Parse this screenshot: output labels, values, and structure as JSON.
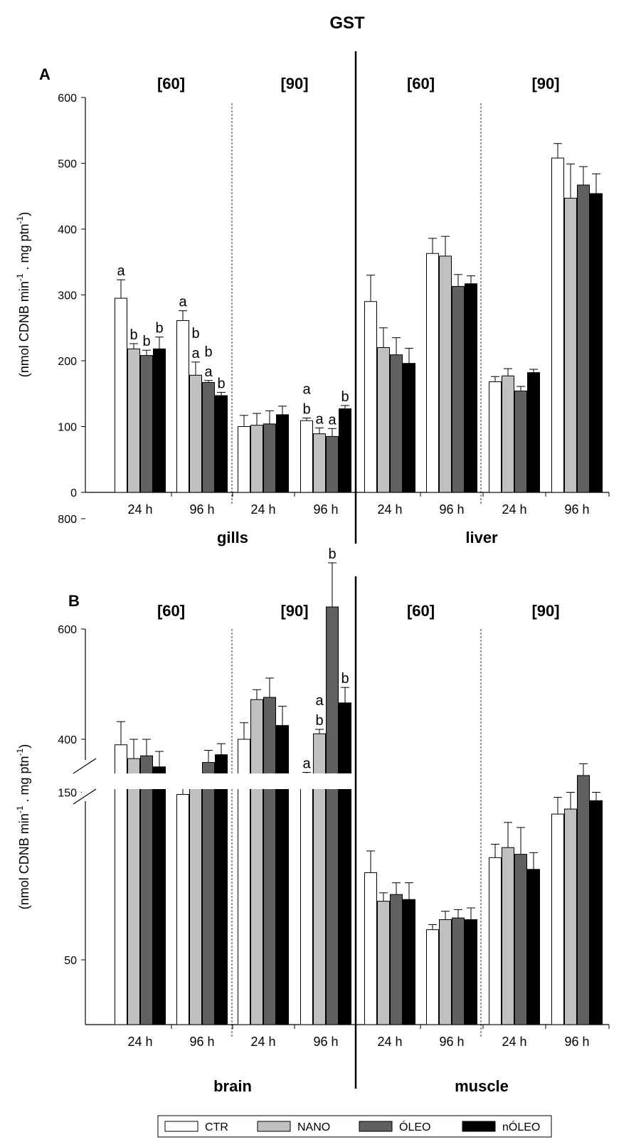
{
  "title": "GST",
  "legend": [
    {
      "label": "CTR",
      "color": "#ffffff"
    },
    {
      "label": "NANO",
      "color": "#c0c0c0"
    },
    {
      "label": "ÓLEO",
      "color": "#606060"
    },
    {
      "label": "nÓLEO",
      "color": "#000000"
    }
  ],
  "chart_data": [
    {
      "panel": "A",
      "type": "bar",
      "ylabel": "(nmol CDNB min-1 . mg ptn-1)",
      "ylim": [
        0,
        600
      ],
      "yticks": [
        0,
        100,
        200,
        300,
        400,
        500,
        600
      ],
      "series_names": [
        "CTR",
        "NANO",
        "ÓLEO",
        "nÓLEO"
      ],
      "tissues": [
        {
          "name": "gills",
          "groups": [
            {
              "conc": "[60]",
              "time": "24 h",
              "values": [
                295,
                218,
                208,
                218
              ],
              "errors": [
                28,
                8,
                8,
                18
              ],
              "letters": [
                "a",
                "b",
                "b",
                "b"
              ]
            },
            {
              "conc": "[60]",
              "time": "96 h",
              "values": [
                261,
                178,
                167,
                147
              ],
              "errors": [
                15,
                20,
                3,
                5
              ],
              "letters": [
                "a",
                "b a",
                "b a",
                "b"
              ]
            },
            {
              "conc": "[90]",
              "time": "24 h",
              "values": [
                100,
                102,
                104,
                118
              ],
              "errors": [
                17,
                18,
                20,
                13
              ],
              "letters": [
                "",
                "",
                "",
                ""
              ]
            },
            {
              "conc": "[90]",
              "time": "96 h",
              "values": [
                109,
                89,
                85,
                127
              ],
              "errors": [
                4,
                9,
                12,
                5
              ],
              "letters": [
                "a b",
                "a",
                "a",
                "b"
              ]
            }
          ]
        },
        {
          "name": "liver",
          "groups": [
            {
              "conc": "[60]",
              "time": "24 h",
              "values": [
                290,
                220,
                209,
                196
              ],
              "errors": [
                40,
                30,
                26,
                23
              ],
              "letters": [
                "",
                "",
                "",
                ""
              ]
            },
            {
              "conc": "[60]",
              "time": "96 h",
              "values": [
                363,
                359,
                313,
                317
              ],
              "errors": [
                23,
                30,
                18,
                12
              ],
              "letters": [
                "",
                "",
                "",
                ""
              ]
            },
            {
              "conc": "[90]",
              "time": "24 h",
              "values": [
                168,
                177,
                154,
                182
              ],
              "errors": [
                8,
                11,
                7,
                5
              ],
              "letters": [
                "",
                "",
                "",
                ""
              ]
            },
            {
              "conc": "[90]",
              "time": "96 h",
              "values": [
                508,
                447,
                467,
                454
              ],
              "errors": [
                22,
                52,
                28,
                30
              ],
              "letters": [
                "",
                "",
                "",
                ""
              ]
            }
          ]
        }
      ]
    },
    {
      "panel": "B",
      "type": "bar",
      "ylabel": "(nmol CDNB min-1 . mg ptn-1)",
      "yticks": [
        50,
        150,
        400,
        600,
        800
      ],
      "axis_break": true,
      "series_names": [
        "CTR",
        "NANO",
        "ÓLEO",
        "nÓLEO"
      ],
      "tissues": [
        {
          "name": "brain",
          "groups": [
            {
              "conc": "[60]",
              "time": "24 h",
              "values": [
                390,
                365,
                370,
                350
              ],
              "errors": [
                42,
                35,
                30,
                28
              ],
              "letters": [
                "",
                "",
                "",
                ""
              ]
            },
            {
              "conc": "[60]",
              "time": "96 h",
              "values": [
                300,
                312,
                358,
                372
              ],
              "errors": [
                12,
                15,
                22,
                20
              ],
              "letters": [
                "",
                "",
                "",
                ""
              ]
            },
            {
              "conc": "[90]",
              "time": "24 h",
              "values": [
                400,
                472,
                476,
                425
              ],
              "errors": [
                30,
                18,
                35,
                35
              ],
              "letters": [
                "",
                "",
                "",
                ""
              ]
            },
            {
              "conc": "[90]",
              "time": "96 h",
              "values": [
                335,
                410,
                640,
                466
              ],
              "errors": [
                5,
                8,
                80,
                28
              ],
              "letters": [
                "a",
                "a b",
                "b",
                "b"
              ]
            }
          ]
        },
        {
          "name": "muscle",
          "groups": [
            {
              "conc": "[60]",
              "time": "24 h",
              "values": [
                102,
                85,
                89,
                86
              ],
              "errors": [
                13,
                5,
                7,
                10
              ],
              "letters": [
                "",
                "",
                "",
                ""
              ]
            },
            {
              "conc": "[60]",
              "time": "96 h",
              "values": [
                68,
                74,
                75,
                74
              ],
              "errors": [
                3,
                5,
                5,
                7
              ],
              "letters": [
                "",
                "",
                "",
                ""
              ]
            },
            {
              "conc": "[90]",
              "time": "24 h",
              "values": [
                111,
                117,
                113,
                104
              ],
              "errors": [
                8,
                15,
                16,
                10
              ],
              "letters": [
                "",
                "",
                "",
                ""
              ]
            },
            {
              "conc": "[90]",
              "time": "96 h",
              "values": [
                137,
                140,
                160,
                145
              ],
              "errors": [
                10,
                10,
                7,
                5
              ],
              "letters": [
                "",
                "",
                "",
                ""
              ]
            }
          ]
        }
      ]
    }
  ]
}
